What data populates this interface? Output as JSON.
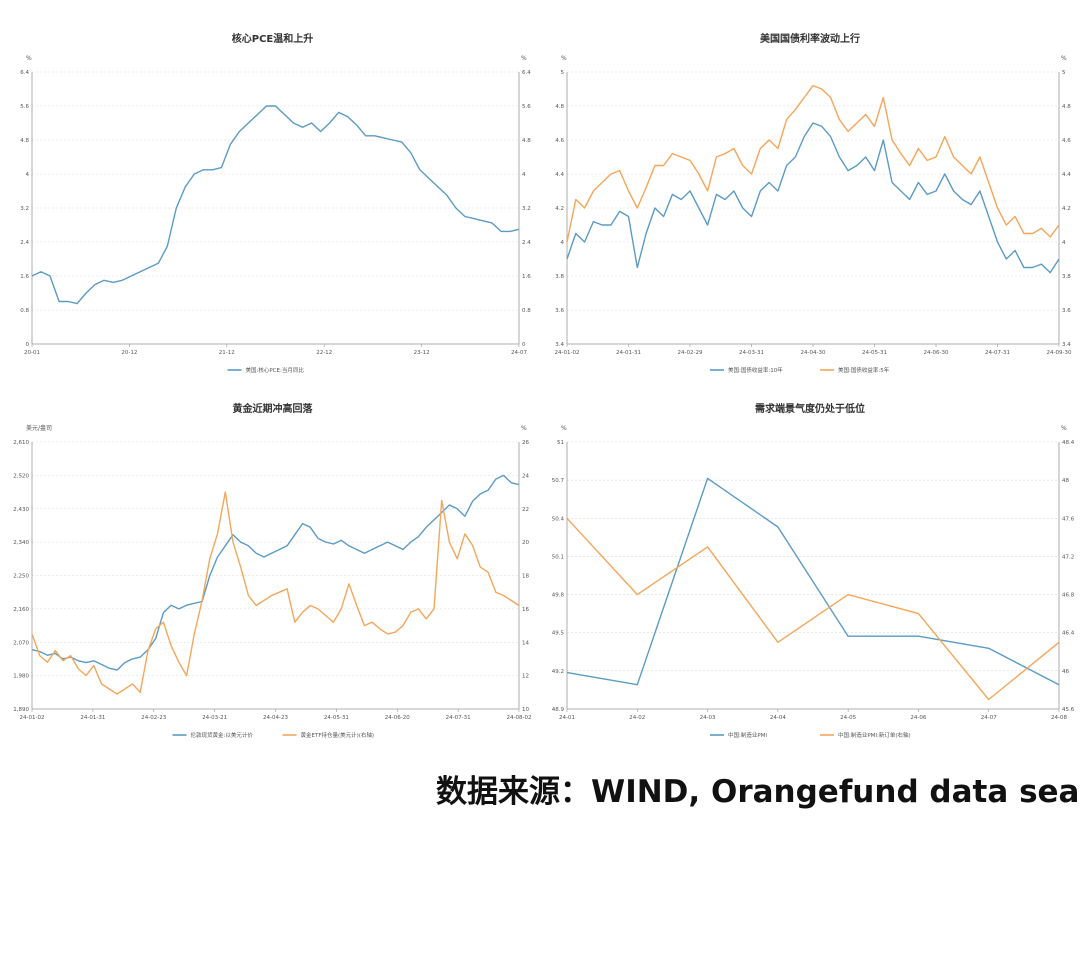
{
  "colors": {
    "blue": "#5b9bc4",
    "orange": "#f4a65a",
    "grid": "#d9d9d9",
    "axis": "#999999",
    "text": "#555555"
  },
  "source_text": "数据来源：WIND, Orangefund data sea",
  "chart_data": [
    {
      "type": "line",
      "title": "核心PCE温和上升",
      "y_unit_left": "%",
      "y_unit_right": "%",
      "ylim": [
        0,
        6.4
      ],
      "y_ticks": [
        "0",
        "0.8",
        "1.6",
        "2.4",
        "3.2",
        "4",
        "4.8",
        "5.6",
        "6.4"
      ],
      "y_tick_values": [
        0,
        0.8,
        1.6,
        2.4,
        3.2,
        4,
        4.8,
        5.6,
        6.4
      ],
      "x_ticks": [
        "20-01",
        "20-12",
        "21-12",
        "22-12",
        "23-12",
        "24-07"
      ],
      "legend_position": "bottom",
      "series": [
        {
          "name": "美国:核心PCE:当月同比",
          "color": "blue",
          "axis": "left",
          "values": [
            1.6,
            1.7,
            1.6,
            1.0,
            1.0,
            0.95,
            1.2,
            1.4,
            1.5,
            1.45,
            1.5,
            1.6,
            1.7,
            1.8,
            1.9,
            2.3,
            3.2,
            3.7,
            4.0,
            4.1,
            4.1,
            4.15,
            4.7,
            5.0,
            5.2,
            5.4,
            5.6,
            5.6,
            5.4,
            5.2,
            5.1,
            5.2,
            5.0,
            5.2,
            5.45,
            5.35,
            5.15,
            4.9,
            4.9,
            4.85,
            4.8,
            4.75,
            4.5,
            4.1,
            3.9,
            3.7,
            3.5,
            3.2,
            3.0,
            2.95,
            2.9,
            2.85,
            2.65,
            2.65,
            2.7
          ]
        }
      ]
    },
    {
      "type": "line",
      "title": "美国国债利率波动上行",
      "y_unit_left": "%",
      "y_unit_right": "%",
      "ylim": [
        3.4,
        5
      ],
      "y_ticks": [
        "3.4",
        "3.6",
        "3.8",
        "4",
        "4.2",
        "4.4",
        "4.6",
        "4.8",
        "5"
      ],
      "y_tick_values": [
        3.4,
        3.6,
        3.8,
        4.0,
        4.2,
        4.4,
        4.6,
        4.8,
        5.0
      ],
      "x_ticks": [
        "24-01-02",
        "24-01-31",
        "24-02-29",
        "24-03-31",
        "24-04-30",
        "24-05-31",
        "24-06-30",
        "24-07-31",
        "24-09-30"
      ],
      "legend_position": "bottom",
      "series": [
        {
          "name": "美国:国债收益率:10年",
          "color": "blue",
          "axis": "left",
          "values": [
            3.9,
            4.05,
            4.0,
            4.12,
            4.1,
            4.1,
            4.18,
            4.15,
            3.85,
            4.05,
            4.2,
            4.15,
            4.28,
            4.25,
            4.3,
            4.2,
            4.1,
            4.28,
            4.25,
            4.3,
            4.2,
            4.15,
            4.3,
            4.35,
            4.3,
            4.45,
            4.5,
            4.62,
            4.7,
            4.68,
            4.62,
            4.5,
            4.42,
            4.45,
            4.5,
            4.42,
            4.6,
            4.35,
            4.3,
            4.25,
            4.35,
            4.28,
            4.3,
            4.4,
            4.3,
            4.25,
            4.22,
            4.3,
            4.15,
            4.0,
            3.9,
            3.95,
            3.85,
            3.85,
            3.87,
            3.82,
            3.9
          ]
        },
        {
          "name": "美国:国债收益率:5年",
          "color": "orange",
          "axis": "right",
          "values": [
            4.0,
            4.25,
            4.2,
            4.3,
            4.35,
            4.4,
            4.42,
            4.3,
            4.2,
            4.32,
            4.45,
            4.45,
            4.52,
            4.5,
            4.48,
            4.4,
            4.3,
            4.5,
            4.52,
            4.55,
            4.45,
            4.4,
            4.55,
            4.6,
            4.55,
            4.72,
            4.78,
            4.85,
            4.92,
            4.9,
            4.85,
            4.72,
            4.65,
            4.7,
            4.75,
            4.68,
            4.85,
            4.6,
            4.52,
            4.45,
            4.55,
            4.48,
            4.5,
            4.62,
            4.5,
            4.45,
            4.4,
            4.5,
            4.35,
            4.2,
            4.1,
            4.15,
            4.05,
            4.05,
            4.08,
            4.03,
            4.1
          ]
        }
      ]
    },
    {
      "type": "line",
      "title": "黄金近期冲高回落",
      "y_unit_left": "美元/盎司",
      "y_unit_right": "%",
      "ylim": [
        1890,
        2610
      ],
      "y_ticks": [
        "1,890",
        "1,980",
        "2,070",
        "2,160",
        "2,250",
        "2,340",
        "2,430",
        "2,520",
        "2,610"
      ],
      "y_tick_values": [
        1890,
        1980,
        2070,
        2160,
        2250,
        2340,
        2430,
        2520,
        2610
      ],
      "y_ticks_right": [
        "10",
        "12",
        "14",
        "16",
        "18",
        "20",
        "22",
        "24",
        "26"
      ],
      "x_ticks": [
        "24-01-02",
        "24-01-31",
        "24-02-23",
        "24-03-21",
        "24-04-23",
        "24-05-31",
        "24-06-20",
        "24-07-31",
        "24-08-02"
      ],
      "legend_position": "bottom",
      "series": [
        {
          "name": "伦敦现货黄金:以美元计价",
          "color": "blue",
          "axis": "left",
          "values": [
            2050,
            2045,
            2035,
            2040,
            2025,
            2030,
            2020,
            2015,
            2020,
            2010,
            2000,
            1995,
            2015,
            2025,
            2030,
            2050,
            2080,
            2150,
            2170,
            2160,
            2170,
            2175,
            2180,
            2250,
            2300,
            2330,
            2360,
            2340,
            2330,
            2310,
            2300,
            2310,
            2320,
            2330,
            2360,
            2390,
            2380,
            2350,
            2340,
            2335,
            2345,
            2330,
            2320,
            2310,
            2320,
            2330,
            2340,
            2330,
            2320,
            2340,
            2355,
            2380,
            2400,
            2420,
            2440,
            2430,
            2410,
            2450,
            2470,
            2480,
            2510,
            2520,
            2500,
            2495
          ]
        },
        {
          "name": "黄金ETF持仓量(美元计)(右轴)",
          "color": "orange",
          "axis": "right",
          "values": [
            14.5,
            13.2,
            12.8,
            13.5,
            12.9,
            13.2,
            12.4,
            12.0,
            12.6,
            11.5,
            11.2,
            10.9,
            11.2,
            11.5,
            11.0,
            13.5,
            14.8,
            15.2,
            13.8,
            12.8,
            12.0,
            14.5,
            16.5,
            19.0,
            20.5,
            23.0,
            20.0,
            18.5,
            16.8,
            16.2,
            16.5,
            16.8,
            17.0,
            17.2,
            15.2,
            15.8,
            16.2,
            16.0,
            15.6,
            15.2,
            16.0,
            17.5,
            16.2,
            15.0,
            15.2,
            14.8,
            14.5,
            14.6,
            15.0,
            15.8,
            16.0,
            15.4,
            16.0,
            22.5,
            20.0,
            19.0,
            20.5,
            19.8,
            18.5,
            18.2,
            17.0,
            16.8,
            16.5,
            16.2
          ]
        }
      ]
    },
    {
      "type": "line",
      "title": "需求端景气度仍处于低位",
      "y_unit_left": "%",
      "y_unit_right": "%",
      "ylim": [
        48.9,
        51.1
      ],
      "y_ticks": [
        "48.9",
        "49.2",
        "49.5",
        "49.8",
        "50.1",
        "50.4",
        "50.7",
        "51"
      ],
      "y_tick_values": [
        48.9,
        49.2,
        49.5,
        49.8,
        50.1,
        50.4,
        50.7,
        51.0
      ],
      "y_ticks_right": [
        "45.6",
        "46",
        "46.4",
        "46.8",
        "47.2",
        "47.6",
        "48",
        "48.4"
      ],
      "x_ticks": [
        "24-01",
        "24-02",
        "24-03",
        "24-04",
        "24-05",
        "24-06",
        "24-07",
        "24-08"
      ],
      "legend_position": "bottom",
      "series": [
        {
          "name": "中国:制造业PMI",
          "color": "blue",
          "axis": "left",
          "values": [
            49.2,
            49.1,
            50.8,
            50.4,
            49.5,
            49.5,
            49.4,
            49.1
          ]
        },
        {
          "name": "中国:制造业PMI:新订单(右轴)",
          "color": "orange",
          "axis": "right",
          "values": [
            47.6,
            46.8,
            47.3,
            46.3,
            46.8,
            46.6,
            45.7,
            46.3
          ]
        }
      ]
    }
  ]
}
